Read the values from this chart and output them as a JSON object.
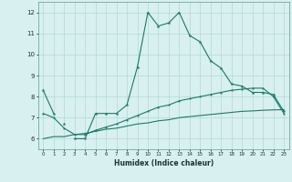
{
  "xlabel": "Humidex (Indice chaleur)",
  "x_values": [
    0,
    1,
    2,
    3,
    4,
    5,
    6,
    7,
    8,
    9,
    10,
    11,
    12,
    13,
    14,
    15,
    16,
    17,
    18,
    19,
    20,
    21,
    22,
    23
  ],
  "line1_y": [
    8.3,
    7.2,
    null,
    6.0,
    6.0,
    7.2,
    7.2,
    7.2,
    7.6,
    9.4,
    12.0,
    11.35,
    11.5,
    12.0,
    10.9,
    10.6,
    9.7,
    9.35,
    8.6,
    8.5,
    8.2,
    8.2,
    8.1,
    7.3
  ],
  "line2_y": [
    null,
    null,
    6.7,
    null,
    null,
    null,
    null,
    null,
    null,
    null,
    null,
    null,
    null,
    null,
    null,
    null,
    null,
    null,
    null,
    null,
    null,
    null,
    null,
    null
  ],
  "line3_y": [
    7.2,
    7.0,
    6.5,
    6.2,
    6.2,
    6.4,
    6.55,
    6.7,
    6.9,
    7.1,
    7.3,
    7.5,
    7.6,
    7.8,
    7.9,
    8.0,
    8.1,
    8.2,
    8.3,
    8.35,
    8.4,
    8.4,
    8.0,
    7.2
  ],
  "line4_y": [
    6.0,
    6.1,
    6.1,
    6.2,
    6.25,
    6.35,
    6.45,
    6.5,
    6.6,
    6.7,
    6.75,
    6.85,
    6.9,
    7.0,
    7.05,
    7.1,
    7.15,
    7.2,
    7.25,
    7.3,
    7.32,
    7.35,
    7.37,
    7.38
  ],
  "line_color": "#1a7a6a",
  "bg_color": "#d9f0f0",
  "grid_color": "#b0d8d8",
  "ylim": [
    5.5,
    12.5
  ],
  "xlim": [
    -0.5,
    23.5
  ],
  "yticks": [
    6,
    7,
    8,
    9,
    10,
    11,
    12
  ]
}
